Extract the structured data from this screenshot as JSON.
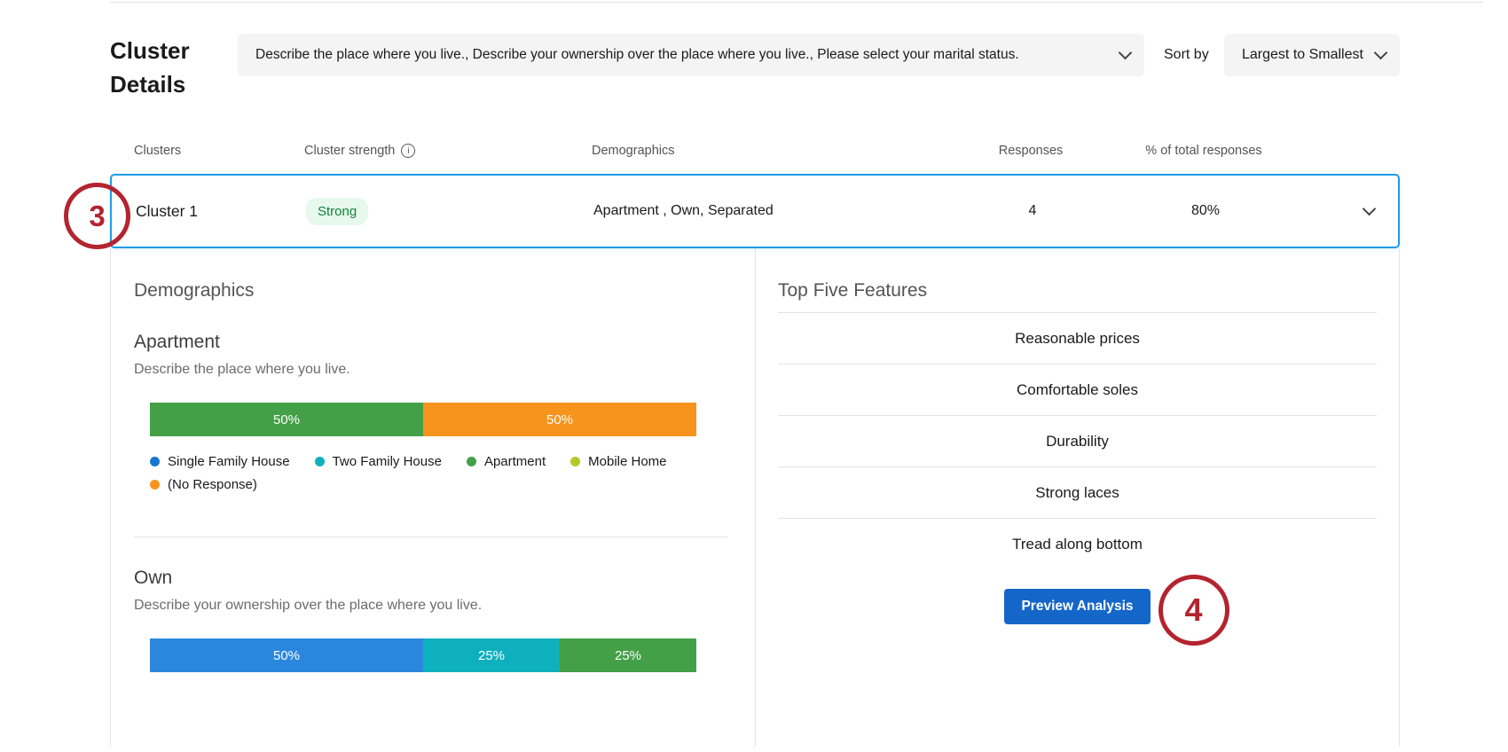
{
  "colors": {
    "accent_blue": "#1e9de4",
    "button_blue": "#1467c8",
    "badge_green_bg": "#e7f8ec",
    "badge_green_text": "#12823b",
    "annotation_red": "#b3242f"
  },
  "icons": {
    "info_glyph": "i"
  },
  "annotations": {
    "step3": "3",
    "step4": "4"
  },
  "header": {
    "title": "Cluster Details",
    "question_filter": {
      "value": "Describe the place where you live., Describe your ownership over the place where you live., Please select your marital status."
    },
    "sort_by_label": "Sort by",
    "sort_select": {
      "value": "Largest to Smallest"
    }
  },
  "table": {
    "columns": [
      "Clusters",
      "Cluster strength",
      "Demographics",
      "Responses",
      "% of total responses"
    ],
    "rows": [
      {
        "cluster": "Cluster 1",
        "strength": "Strong",
        "demographics": "Apartment , Own, Separated",
        "responses": "4",
        "pct_of_total": "80%",
        "selected": true,
        "expanded": true
      }
    ]
  },
  "details": {
    "demographics": {
      "title": "Demographics",
      "sections": [
        {
          "heading": "Apartment",
          "question": "Describe the place where you live.",
          "segments": [
            {
              "label": "50%",
              "value": 50,
              "color": "#43a047"
            },
            {
              "label": "50%",
              "value": 50,
              "color": "#f7941d"
            }
          ],
          "legend": [
            {
              "label": "Single Family House",
              "color": "#1776d2"
            },
            {
              "label": "Two Family House",
              "color": "#0fb0bd"
            },
            {
              "label": "Apartment",
              "color": "#43a047"
            },
            {
              "label": "Mobile Home",
              "color": "#b5c827"
            },
            {
              "label": "(No Response)",
              "color": "#f7941d"
            }
          ]
        },
        {
          "heading": "Own",
          "question": "Describe your ownership over the place where you live.",
          "segments": [
            {
              "label": "50%",
              "value": 50,
              "color": "#2b87dd"
            },
            {
              "label": "25%",
              "value": 25,
              "color": "#0fb0bd"
            },
            {
              "label": "25%",
              "value": 25,
              "color": "#43a047"
            }
          ],
          "legend": []
        }
      ]
    },
    "features": {
      "title": "Top Five Features",
      "items": [
        "Reasonable prices",
        "Comfortable soles",
        "Durability",
        "Strong laces",
        "Tread along bottom"
      ],
      "preview_button": "Preview Analysis"
    }
  }
}
